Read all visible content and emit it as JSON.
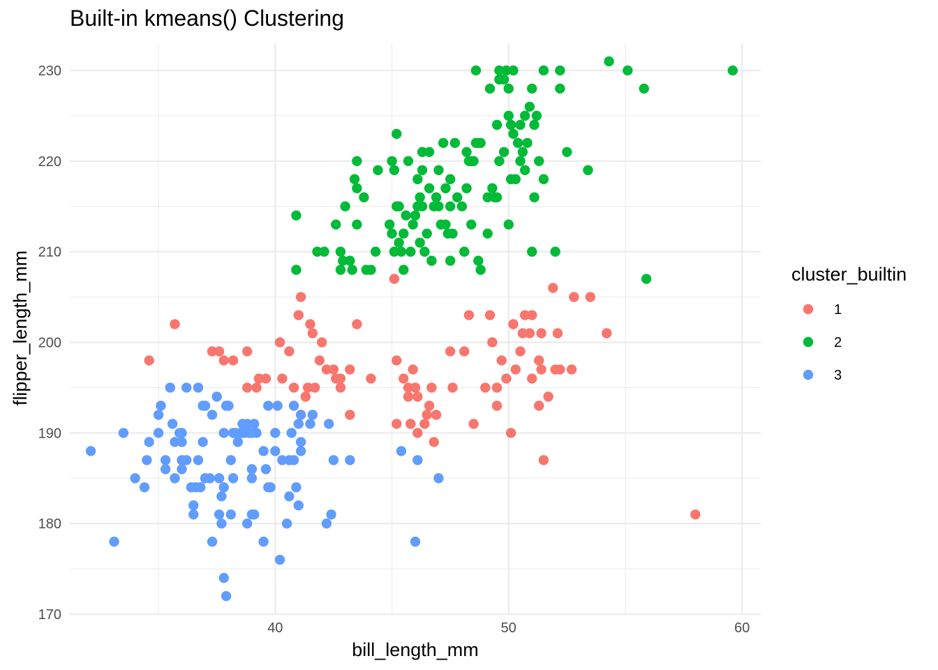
{
  "chart_data": {
    "type": "scatter",
    "title": "Built-in kmeans() Clustering",
    "xlabel": "bill_length_mm",
    "ylabel": "flipper_length_mm",
    "xlim": [
      31.2,
      60.8
    ],
    "ylim": [
      170,
      233
    ],
    "xticks": [
      40,
      50,
      60
    ],
    "yticks": [
      170,
      180,
      190,
      200,
      210,
      220,
      230
    ],
    "grid": true,
    "legend": {
      "title": "cluster_builtin",
      "position": "right",
      "entries": [
        {
          "label": "1",
          "color": "#F8766D"
        },
        {
          "label": "2",
          "color": "#00BA38"
        },
        {
          "label": "3",
          "color": "#619CFF"
        }
      ]
    },
    "series": [
      {
        "name": "1",
        "color": "#F8766D",
        "points": [
          [
            34.6,
            198
          ],
          [
            35.7,
            202
          ],
          [
            37.3,
            199
          ],
          [
            37.6,
            199
          ],
          [
            37.8,
            198
          ],
          [
            38.2,
            198
          ],
          [
            38.8,
            199
          ],
          [
            38.8,
            195
          ],
          [
            39.2,
            195
          ],
          [
            39.3,
            196
          ],
          [
            39.6,
            196
          ],
          [
            40.2,
            200
          ],
          [
            40.3,
            196
          ],
          [
            40.6,
            199
          ],
          [
            40.8,
            195
          ],
          [
            41.0,
            203
          ],
          [
            41.1,
            205
          ],
          [
            41.3,
            194
          ],
          [
            41.4,
            195
          ],
          [
            41.5,
            202
          ],
          [
            41.6,
            201
          ],
          [
            41.7,
            195
          ],
          [
            41.9,
            198
          ],
          [
            42.0,
            200
          ],
          [
            42.2,
            197
          ],
          [
            42.5,
            197
          ],
          [
            42.6,
            196
          ],
          [
            42.8,
            196
          ],
          [
            42.8,
            195
          ],
          [
            43.2,
            197
          ],
          [
            43.2,
            192
          ],
          [
            43.5,
            202
          ],
          [
            44.1,
            196
          ],
          [
            45.1,
            207
          ],
          [
            45.2,
            198
          ],
          [
            45.2,
            191
          ],
          [
            45.5,
            196
          ],
          [
            45.7,
            195
          ],
          [
            45.7,
            194
          ],
          [
            45.8,
            191
          ],
          [
            45.9,
            197
          ],
          [
            46.0,
            195
          ],
          [
            46.1,
            194
          ],
          [
            46.1,
            190
          ],
          [
            46.4,
            191
          ],
          [
            46.5,
            192
          ],
          [
            46.6,
            193
          ],
          [
            46.7,
            195
          ],
          [
            46.8,
            189
          ],
          [
            46.9,
            192
          ],
          [
            47.5,
            199
          ],
          [
            47.6,
            195
          ],
          [
            48.1,
            199
          ],
          [
            48.3,
            203
          ],
          [
            48.5,
            191
          ],
          [
            49.0,
            195
          ],
          [
            49.2,
            203
          ],
          [
            49.3,
            200
          ],
          [
            49.5,
            195
          ],
          [
            49.5,
            193
          ],
          [
            49.7,
            198
          ],
          [
            49.9,
            196
          ],
          [
            50.1,
            190
          ],
          [
            50.2,
            202
          ],
          [
            50.3,
            197
          ],
          [
            50.5,
            199
          ],
          [
            50.6,
            201
          ],
          [
            50.7,
            203
          ],
          [
            50.9,
            201
          ],
          [
            51.0,
            203
          ],
          [
            51.0,
            196
          ],
          [
            51.3,
            193
          ],
          [
            51.4,
            201
          ],
          [
            51.3,
            198
          ],
          [
            51.4,
            197
          ],
          [
            51.5,
            187
          ],
          [
            51.7,
            194
          ],
          [
            52.0,
            197
          ],
          [
            52.1,
            201
          ],
          [
            52.2,
            197
          ],
          [
            52.7,
            197
          ],
          [
            52.8,
            205
          ],
          [
            53.5,
            205
          ],
          [
            51.9,
            206
          ],
          [
            54.2,
            201
          ],
          [
            58.0,
            181
          ]
        ]
      },
      {
        "name": "2",
        "color": "#00BA38",
        "points": [
          [
            40.9,
            208
          ],
          [
            40.9,
            214
          ],
          [
            41.8,
            210
          ],
          [
            42.1,
            210
          ],
          [
            42.8,
            208
          ],
          [
            42.9,
            209
          ],
          [
            42.6,
            213
          ],
          [
            43.3,
            208
          ],
          [
            43.2,
            209
          ],
          [
            42.8,
            210
          ],
          [
            43.0,
            215
          ],
          [
            43.5,
            213
          ],
          [
            43.4,
            218
          ],
          [
            43.5,
            217
          ],
          [
            43.5,
            220
          ],
          [
            43.8,
            216
          ],
          [
            43.9,
            208
          ],
          [
            44.1,
            208
          ],
          [
            44.3,
            210
          ],
          [
            44.4,
            219
          ],
          [
            44.9,
            213
          ],
          [
            45.0,
            212
          ],
          [
            45.0,
            220
          ],
          [
            45.1,
            210
          ],
          [
            45.2,
            215
          ],
          [
            45.2,
            223
          ],
          [
            45.3,
            215
          ],
          [
            45.3,
            211
          ],
          [
            45.4,
            210
          ],
          [
            45.5,
            212
          ],
          [
            45.5,
            208
          ],
          [
            45.6,
            214
          ],
          [
            45.7,
            220
          ],
          [
            45.8,
            210
          ],
          [
            45.9,
            213
          ],
          [
            46.0,
            214
          ],
          [
            46.1,
            215
          ],
          [
            46.2,
            211
          ],
          [
            46.3,
            219
          ],
          [
            46.4,
            210
          ],
          [
            46.5,
            212
          ],
          [
            46.8,
            215
          ],
          [
            46.2,
            216
          ],
          [
            46.6,
            217
          ],
          [
            46.7,
            209
          ],
          [
            46.9,
            216
          ],
          [
            47.0,
            215
          ],
          [
            47.0,
            219
          ],
          [
            47.2,
            222
          ],
          [
            47.3,
            213
          ],
          [
            46.6,
            221
          ],
          [
            46.3,
            221
          ],
          [
            47.4,
            212
          ],
          [
            47.5,
            215
          ],
          [
            47.5,
            218
          ],
          [
            47.6,
            212
          ],
          [
            47.7,
            222
          ],
          [
            47.8,
            216
          ],
          [
            47.5,
            209
          ],
          [
            48.1,
            210
          ],
          [
            48.2,
            221
          ],
          [
            48.4,
            213
          ],
          [
            48.4,
            220
          ],
          [
            48.5,
            220
          ],
          [
            48.7,
            209
          ],
          [
            48.7,
            222
          ],
          [
            48.8,
            208
          ],
          [
            48.8,
            222
          ],
          [
            49.1,
            216
          ],
          [
            49.1,
            212
          ],
          [
            49.2,
            228
          ],
          [
            49.3,
            217
          ],
          [
            49.4,
            216
          ],
          [
            49.5,
            216
          ],
          [
            49.5,
            224
          ],
          [
            49.6,
            220
          ],
          [
            49.8,
            221
          ],
          [
            49.6,
            229
          ],
          [
            49.8,
            229
          ],
          [
            49.9,
            230
          ],
          [
            50.0,
            228
          ],
          [
            50.0,
            213
          ],
          [
            50.0,
            225
          ],
          [
            50.1,
            218
          ],
          [
            50.1,
            224
          ],
          [
            50.2,
            230
          ],
          [
            50.3,
            218
          ],
          [
            50.4,
            222
          ],
          [
            50.5,
            224
          ],
          [
            50.5,
            220
          ],
          [
            50.6,
            221
          ],
          [
            50.7,
            225
          ],
          [
            50.8,
            222
          ],
          [
            50.9,
            226
          ],
          [
            51.0,
            228
          ],
          [
            51.0,
            210
          ],
          [
            51.1,
            216
          ],
          [
            51.1,
            224
          ],
          [
            51.2,
            225
          ],
          [
            51.3,
            220
          ],
          [
            51.5,
            218
          ],
          [
            51.5,
            230
          ],
          [
            52.2,
            230
          ],
          [
            52.0,
            210
          ],
          [
            52.2,
            228
          ],
          [
            52.5,
            221
          ],
          [
            53.4,
            219
          ],
          [
            54.3,
            231
          ],
          [
            55.1,
            230
          ],
          [
            55.8,
            228
          ],
          [
            55.9,
            207
          ],
          [
            59.6,
            230
          ],
          [
            48.6,
            230
          ],
          [
            49.6,
            230
          ],
          [
            50.2,
            223
          ],
          [
            48.2,
            217
          ],
          [
            48.3,
            220
          ],
          [
            45.1,
            219
          ],
          [
            46.1,
            218
          ],
          [
            46.3,
            215
          ],
          [
            47.1,
            213
          ],
          [
            48.6,
            222
          ],
          [
            50.7,
            219
          ],
          [
            48.0,
            215
          ],
          [
            47.3,
            217
          ]
        ]
      },
      {
        "name": "3",
        "color": "#619CFF",
        "points": [
          [
            32.1,
            188
          ],
          [
            33.1,
            178
          ],
          [
            33.5,
            190
          ],
          [
            34.0,
            185
          ],
          [
            34.4,
            184
          ],
          [
            34.6,
            189
          ],
          [
            34.5,
            187
          ],
          [
            35.0,
            190
          ],
          [
            35.0,
            192
          ],
          [
            35.1,
            193
          ],
          [
            35.3,
            186
          ],
          [
            35.3,
            187
          ],
          [
            35.5,
            195
          ],
          [
            35.6,
            191
          ],
          [
            35.7,
            189
          ],
          [
            35.7,
            185
          ],
          [
            35.9,
            190
          ],
          [
            36.0,
            190
          ],
          [
            36.0,
            186
          ],
          [
            36.0,
            189
          ],
          [
            36.2,
            187
          ],
          [
            36.2,
            195
          ],
          [
            36.4,
            184
          ],
          [
            36.5,
            182
          ],
          [
            36.6,
            184
          ],
          [
            36.5,
            181
          ],
          [
            36.7,
            187
          ],
          [
            36.7,
            195
          ],
          [
            36.8,
            184
          ],
          [
            36.9,
            189
          ],
          [
            37.0,
            185
          ],
          [
            36.9,
            193
          ],
          [
            37.0,
            193
          ],
          [
            37.2,
            185
          ],
          [
            37.3,
            178
          ],
          [
            37.3,
            192
          ],
          [
            37.5,
            194
          ],
          [
            37.6,
            181
          ],
          [
            37.6,
            185
          ],
          [
            37.7,
            183
          ],
          [
            37.7,
            180
          ],
          [
            37.8,
            184
          ],
          [
            37.8,
            174
          ],
          [
            37.8,
            190
          ],
          [
            37.9,
            193
          ],
          [
            37.9,
            172
          ],
          [
            38.0,
            193
          ],
          [
            38.1,
            187
          ],
          [
            38.1,
            181
          ],
          [
            38.2,
            185
          ],
          [
            38.2,
            190
          ],
          [
            38.3,
            190
          ],
          [
            38.4,
            189
          ],
          [
            38.6,
            190
          ],
          [
            38.6,
            191
          ],
          [
            38.7,
            190
          ],
          [
            38.8,
            180
          ],
          [
            38.8,
            191
          ],
          [
            38.9,
            190
          ],
          [
            39.0,
            181
          ],
          [
            39.0,
            185
          ],
          [
            39.0,
            186
          ],
          [
            39.1,
            191
          ],
          [
            39.1,
            181
          ],
          [
            39.2,
            190
          ],
          [
            39.5,
            188
          ],
          [
            39.5,
            178
          ],
          [
            39.6,
            186
          ],
          [
            39.7,
            193
          ],
          [
            39.7,
            184
          ],
          [
            39.8,
            184
          ],
          [
            40.0,
            188
          ],
          [
            40.1,
            193
          ],
          [
            40.2,
            176
          ],
          [
            40.3,
            187
          ],
          [
            40.5,
            180
          ],
          [
            40.6,
            183
          ],
          [
            40.6,
            187
          ],
          [
            40.7,
            190
          ],
          [
            40.8,
            193
          ],
          [
            40.8,
            187
          ],
          [
            40.9,
            184
          ],
          [
            41.0,
            182
          ],
          [
            41.0,
            191
          ],
          [
            41.1,
            188
          ],
          [
            41.1,
            189
          ],
          [
            41.1,
            192
          ],
          [
            41.5,
            191
          ],
          [
            41.6,
            192
          ],
          [
            42.2,
            180
          ],
          [
            42.3,
            191
          ],
          [
            42.4,
            181
          ],
          [
            42.5,
            187
          ],
          [
            43.2,
            187
          ],
          [
            45.4,
            188
          ],
          [
            46.0,
            178
          ],
          [
            46.1,
            187
          ],
          [
            47.0,
            185
          ],
          [
            39.0,
            190
          ],
          [
            36.0,
            187
          ],
          [
            38.5,
            190
          ],
          [
            40.0,
            190
          ]
        ]
      }
    ]
  }
}
